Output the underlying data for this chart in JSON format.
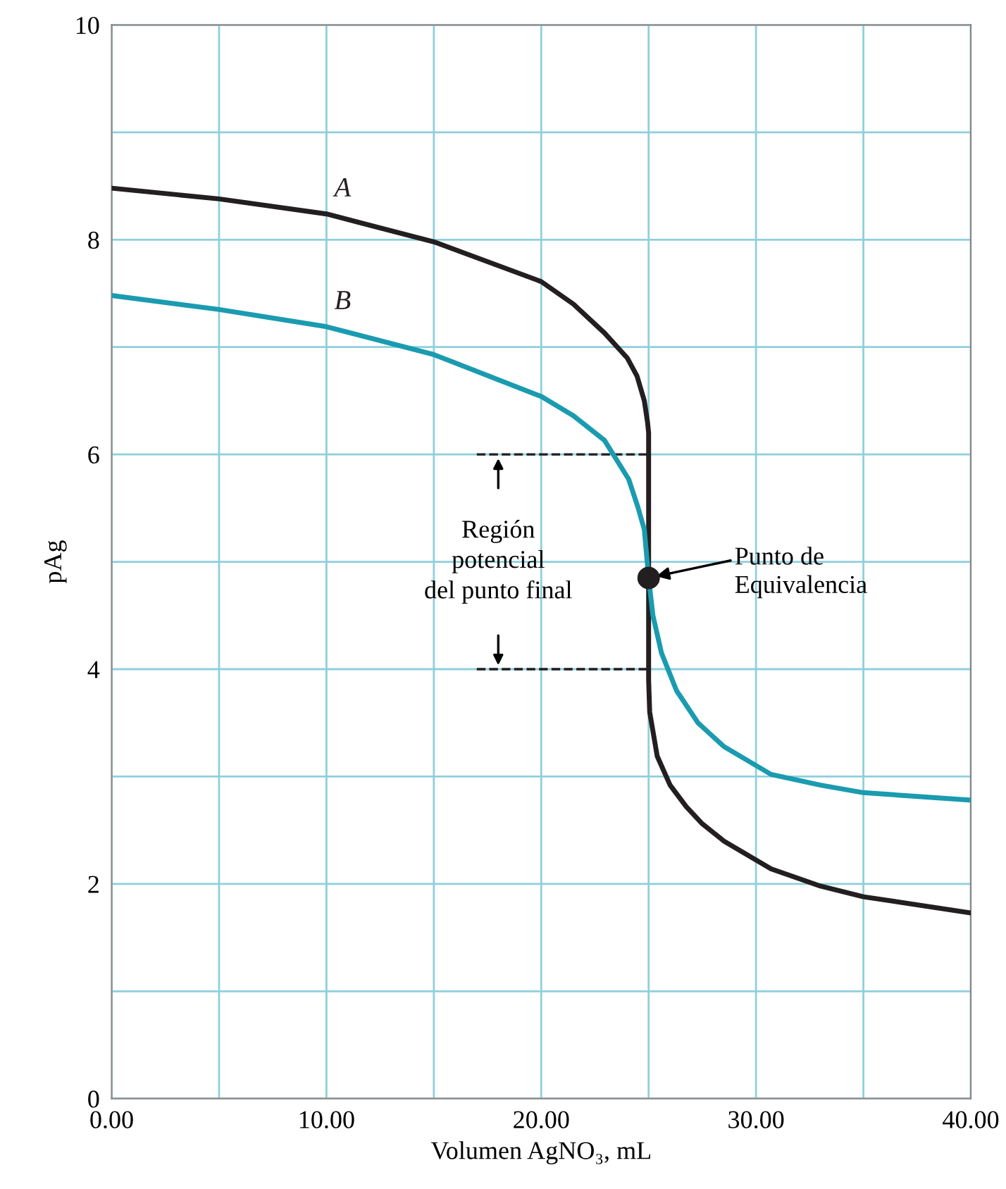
{
  "chart_data": {
    "type": "line",
    "xlabel": "Volumen AgNO₃, mL",
    "ylabel": "pAg",
    "xlim": [
      0,
      40
    ],
    "ylim": [
      0,
      10
    ],
    "xticks": [
      {
        "value": 0,
        "label": "0.00"
      },
      {
        "value": 5,
        "label": null
      },
      {
        "value": 10,
        "label": "10.00"
      },
      {
        "value": 15,
        "label": null
      },
      {
        "value": 20,
        "label": "20.00"
      },
      {
        "value": 25,
        "label": null
      },
      {
        "value": 30,
        "label": "30.00"
      },
      {
        "value": 35,
        "label": null
      },
      {
        "value": 40,
        "label": "40.00"
      }
    ],
    "yticks": [
      0,
      {
        "value": 1,
        "label": null
      },
      2,
      {
        "value": 3,
        "label": null
      },
      4,
      {
        "value": 5,
        "label": null
      },
      6,
      {
        "value": 7,
        "label": null
      },
      8,
      {
        "value": 9,
        "label": null
      },
      10
    ],
    "grid": true,
    "line_style": "solid",
    "series": [
      {
        "name": "A",
        "color": "#231f20",
        "x": [
          0,
          5,
          10,
          15,
          20,
          21.5,
          22.95,
          24,
          24.46,
          24.8,
          24.95,
          25,
          25,
          25.05,
          25.4,
          26,
          26.75,
          27.5,
          28.5,
          30.7,
          33,
          35,
          40
        ],
        "values": [
          8.48,
          8.38,
          8.24,
          7.98,
          7.61,
          7.4,
          7.13,
          6.9,
          6.73,
          6.5,
          6.3,
          6.2,
          3.9,
          3.6,
          3.19,
          2.92,
          2.72,
          2.56,
          2.4,
          2.14,
          1.98,
          1.88,
          1.73
        ]
      },
      {
        "name": "B",
        "color": "#1a9bb0",
        "x": [
          0,
          5,
          10,
          15,
          20,
          21.5,
          22.95,
          24.07,
          24.5,
          24.8,
          25,
          25.2,
          25.6,
          26.3,
          27.3,
          28.5,
          30.7,
          33,
          35,
          40
        ],
        "values": [
          7.48,
          7.35,
          7.19,
          6.93,
          6.54,
          6.36,
          6.13,
          5.77,
          5.51,
          5.3,
          4.85,
          4.5,
          4.15,
          3.8,
          3.5,
          3.28,
          3.02,
          2.92,
          2.85,
          2.78
        ]
      },
      {
        "type": "scatter",
        "color": "#231f20",
        "marker": "circle",
        "x": [
          25
        ],
        "values": [
          4.85
        ]
      },
      {
        "type": "line",
        "color": "#231f20",
        "line_style": "dashed",
        "x": [
          17,
          25
        ],
        "values": [
          6,
          6
        ]
      },
      {
        "type": "line",
        "color": "#231f20",
        "line_style": "dashed",
        "x": [
          17,
          25
        ],
        "values": [
          4,
          4
        ]
      }
    ],
    "annotations": [
      "Región\npotencial\ndel punto final",
      {
        "text": "Punto de\nEquivalencia",
        "x": 25,
        "y": 4.85
      }
    ]
  }
}
